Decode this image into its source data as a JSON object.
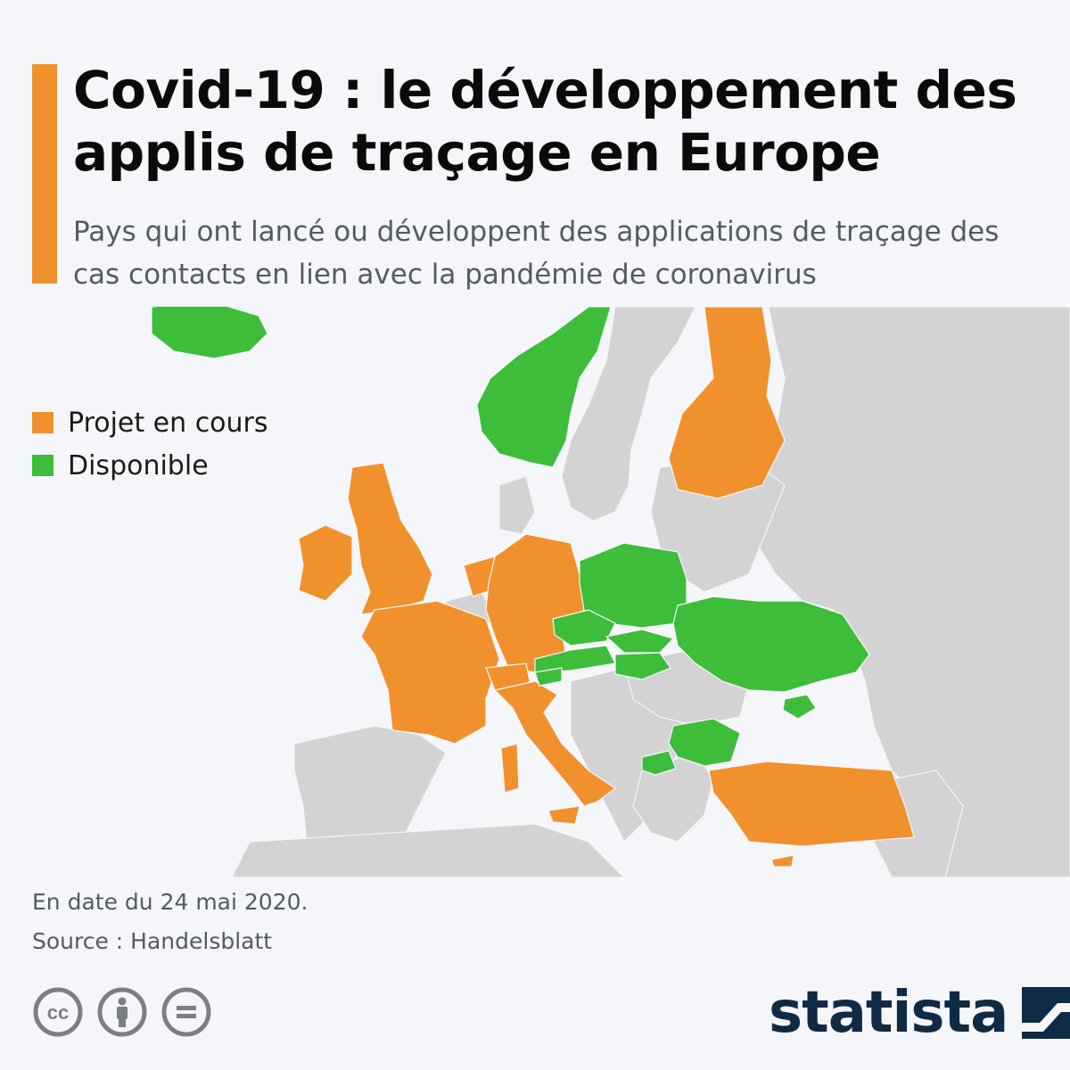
{
  "header": {
    "title": "Covid-19 : le développement des applis de traçage en Europe",
    "subtitle": "Pays qui ont lancé ou développent des applications de traçage des cas contacts en lien avec la pandémie de coronavirus"
  },
  "legend": {
    "items": [
      {
        "label": "Projet en cours",
        "color": "#f0912e"
      },
      {
        "label": "Disponible",
        "color": "#3dbd3a"
      }
    ]
  },
  "map": {
    "base_color": "#d3d3d3",
    "sea_color": "#f4f6f9",
    "countries": [
      {
        "name": "Iceland",
        "status": "Disponible"
      },
      {
        "name": "Norway",
        "status": "Disponible"
      },
      {
        "name": "Finland",
        "status": "Projet en cours"
      },
      {
        "name": "Ireland",
        "status": "Projet en cours"
      },
      {
        "name": "United Kingdom",
        "status": "Projet en cours"
      },
      {
        "name": "Netherlands",
        "status": "Projet en cours"
      },
      {
        "name": "Germany",
        "status": "Projet en cours"
      },
      {
        "name": "France",
        "status": "Projet en cours"
      },
      {
        "name": "Switzerland",
        "status": "Projet en cours"
      },
      {
        "name": "Italy",
        "status": "Projet en cours"
      },
      {
        "name": "Poland",
        "status": "Disponible"
      },
      {
        "name": "Czech Republic",
        "status": "Disponible"
      },
      {
        "name": "Slovakia",
        "status": "Disponible"
      },
      {
        "name": "Austria",
        "status": "Disponible"
      },
      {
        "name": "Hungary",
        "status": "Disponible"
      },
      {
        "name": "Slovenia",
        "status": "Disponible"
      },
      {
        "name": "Ukraine",
        "status": "Disponible"
      },
      {
        "name": "Bulgaria",
        "status": "Disponible"
      },
      {
        "name": "North Macedonia",
        "status": "Disponible"
      },
      {
        "name": "Turkey",
        "status": "Projet en cours"
      },
      {
        "name": "Cyprus",
        "status": "Projet en cours"
      }
    ]
  },
  "footnote": {
    "date": "En date du 24 mai 2020.",
    "source": "Source : Handelsblatt"
  },
  "license_icons": [
    "cc-icon",
    "by-icon",
    "nd-icon"
  ],
  "brand": {
    "name": "statista",
    "accent_color": "#f0912e",
    "brand_color": "#0f2a44"
  }
}
